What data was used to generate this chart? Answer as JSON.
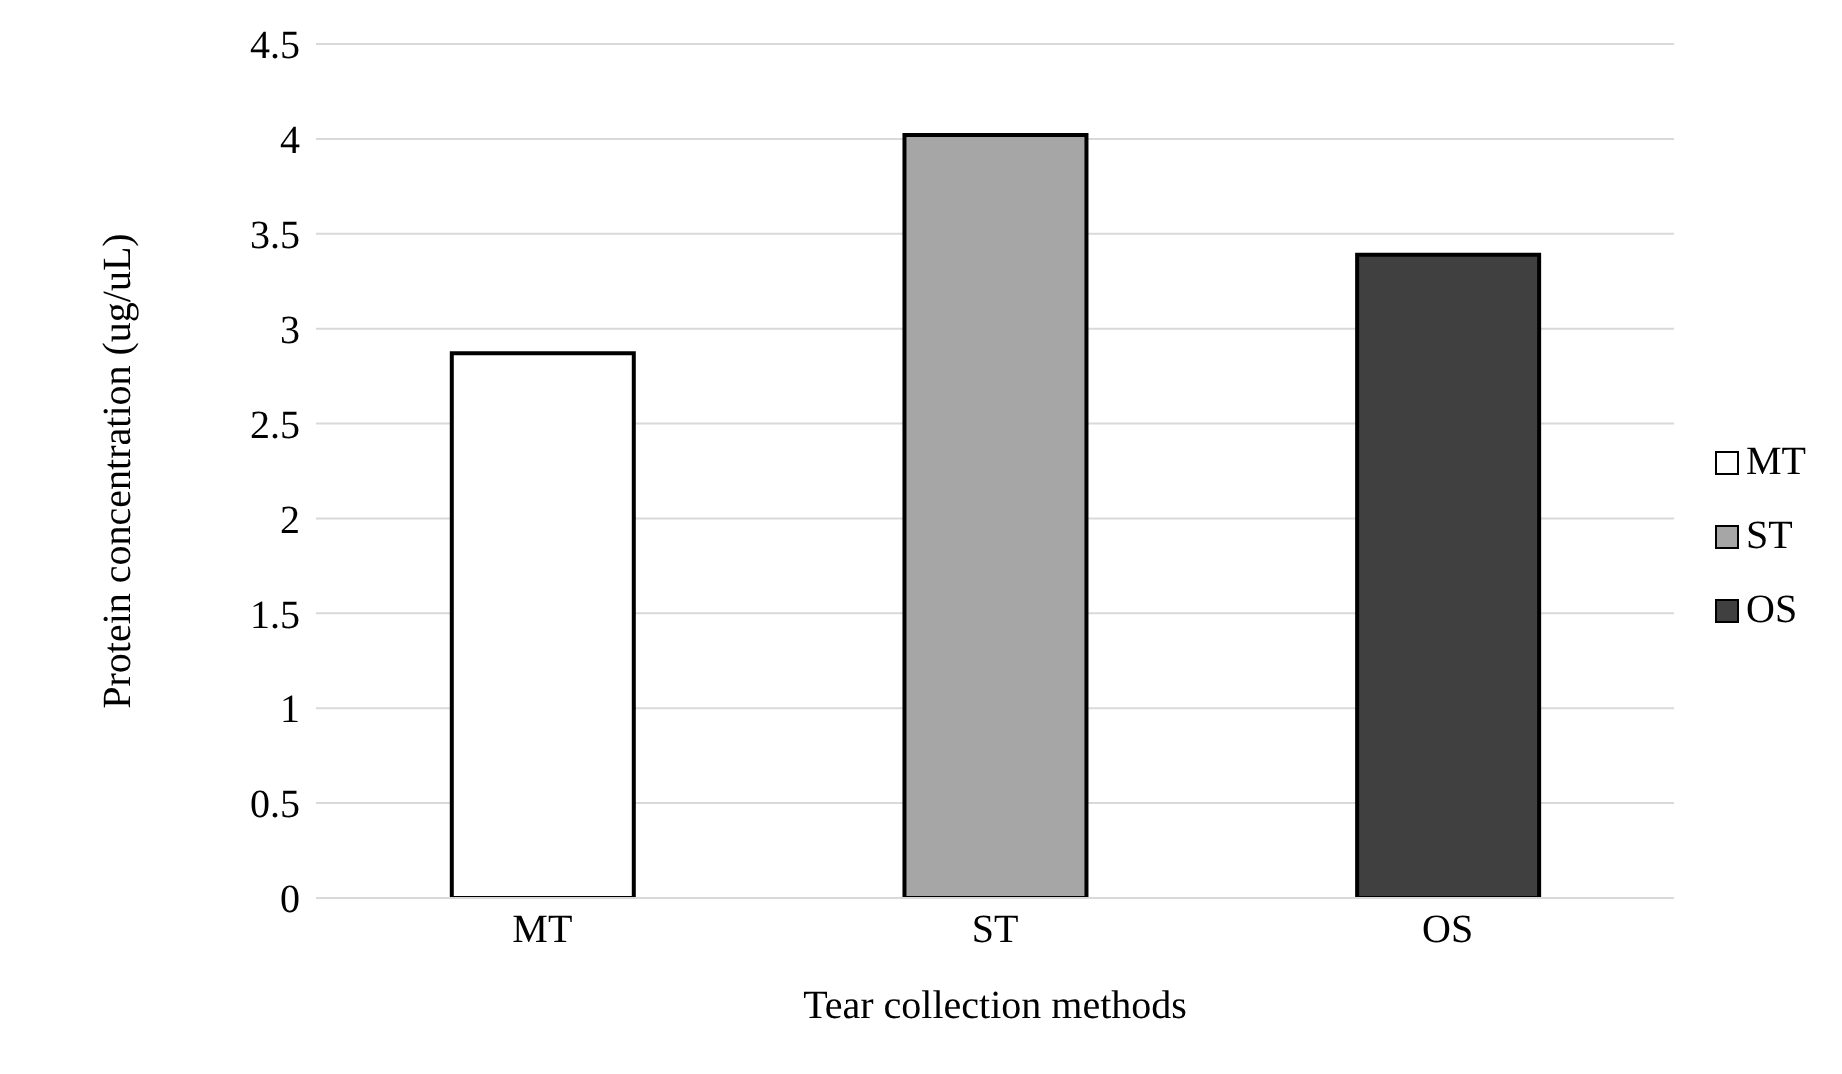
{
  "chart_data": {
    "type": "bar",
    "xlabel": "Tear collection methods",
    "ylabel": "Protein concentration (ug/uL)",
    "categories": [
      "MT",
      "ST",
      "OS"
    ],
    "series": [
      {
        "name": "MT",
        "color": "#ffffff",
        "values": [
          2.87,
          null,
          null
        ]
      },
      {
        "name": "ST",
        "color": "#a6a6a6",
        "values": [
          null,
          4.02,
          null
        ]
      },
      {
        "name": "OS",
        "color": "#404040",
        "values": [
          null,
          null,
          3.39
        ]
      }
    ],
    "stacked": true,
    "ylim": [
      0,
      4.5
    ],
    "yticks": [
      0,
      0.5,
      1,
      1.5,
      2,
      2.5,
      3,
      3.5,
      4,
      4.5
    ],
    "grid": "y",
    "legend": "right"
  }
}
